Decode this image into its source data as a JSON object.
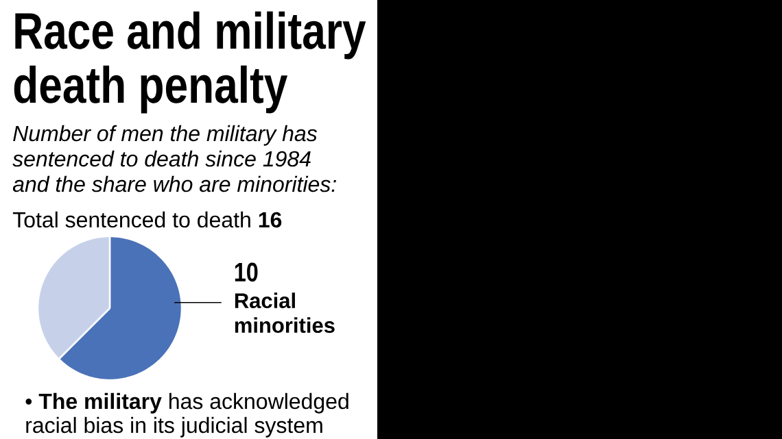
{
  "chart_data": {
    "type": "pie",
    "title": "Race and military death penalty",
    "subtitle": "Number of men the military has sentenced to death since 1984 and the share who are minorities:",
    "categories": [
      "Racial minorities",
      null
    ],
    "values": [
      10,
      6
    ],
    "colors": [
      "#4a72b8",
      "#c6d1e9"
    ],
    "value_labels": [
      "10",
      null
    ],
    "annotations": [
      "Total sentenced to death **16**",
      "• **The military** has acknowledged racial bias in its judicial system"
    ]
  }
}
